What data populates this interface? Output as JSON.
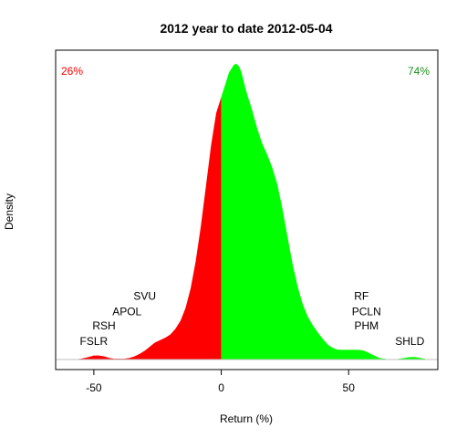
{
  "chart_data": {
    "type": "area",
    "title": "2012  year to date 2012-05-04",
    "xlabel": "Return (%)",
    "ylabel": "Density",
    "xlim": [
      -65,
      85
    ],
    "ylim": [
      0,
      0.037
    ],
    "x_ticks": [
      -50,
      0,
      50
    ],
    "x_tick_labels": [
      "-50",
      "0",
      "50"
    ],
    "split_at": 0,
    "negative_share": "26%",
    "positive_share": "74%",
    "colors": {
      "negative": "#ff0000",
      "positive": "#00ff00",
      "baseline": "#bebebe"
    },
    "density": {
      "x": [
        -58,
        -55,
        -52,
        -50,
        -48,
        -46,
        -44,
        -42,
        -40,
        -38,
        -36,
        -34,
        -32,
        -30,
        -28,
        -26,
        -24,
        -22,
        -20,
        -18,
        -16,
        -14,
        -12,
        -10,
        -8,
        -6,
        -4,
        -2,
        0,
        1,
        2,
        3,
        4,
        5,
        6,
        7,
        8,
        9,
        10,
        12,
        14,
        16,
        18,
        20,
        22,
        24,
        26,
        28,
        30,
        32,
        34,
        36,
        38,
        40,
        42,
        44,
        46,
        48,
        50,
        52,
        54,
        56,
        58,
        60,
        62,
        64,
        66,
        68,
        70,
        72,
        74,
        76,
        78,
        80
      ],
      "y": [
        0.0,
        0.0001,
        0.0003,
        0.0005,
        0.0005,
        0.0004,
        0.0002,
        0.0001,
        0.0001,
        0.0001,
        0.0002,
        0.0004,
        0.0007,
        0.0011,
        0.0016,
        0.0021,
        0.0024,
        0.0027,
        0.0031,
        0.0038,
        0.0048,
        0.0064,
        0.0088,
        0.0122,
        0.0165,
        0.0215,
        0.0265,
        0.0305,
        0.0325,
        0.0335,
        0.0345,
        0.0355,
        0.036,
        0.0365,
        0.0366,
        0.0363,
        0.0355,
        0.0342,
        0.033,
        0.031,
        0.0287,
        0.0268,
        0.0254,
        0.0238,
        0.0217,
        0.0187,
        0.0152,
        0.0118,
        0.009,
        0.0068,
        0.0053,
        0.0042,
        0.0033,
        0.0025,
        0.0018,
        0.0014,
        0.0012,
        0.0012,
        0.0012,
        0.0012,
        0.0012,
        0.0011,
        0.0008,
        0.0005,
        0.0002,
        0.0001,
        0.0,
        0.0,
        0.0001,
        0.0002,
        0.0003,
        0.0003,
        0.0002,
        0.0001
      ]
    },
    "annotations": [
      {
        "text": "SVU",
        "x": -30,
        "y": 0.0074
      },
      {
        "text": "APOL",
        "x": -37,
        "y": 0.0055
      },
      {
        "text": "RSH",
        "x": -46,
        "y": 0.0037
      },
      {
        "text": "FSLR",
        "x": -50,
        "y": 0.0018
      },
      {
        "text": "RF",
        "x": 55,
        "y": 0.0074
      },
      {
        "text": "PCLN",
        "x": 57,
        "y": 0.0055
      },
      {
        "text": "PHM",
        "x": 57,
        "y": 0.0037
      },
      {
        "text": "SHLD",
        "x": 74,
        "y": 0.0018
      }
    ]
  }
}
